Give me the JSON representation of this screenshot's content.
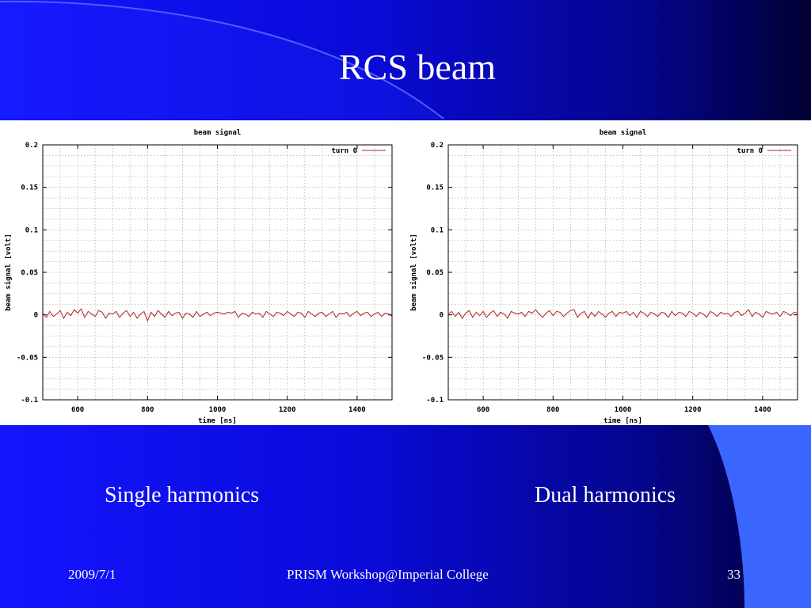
{
  "slide": {
    "title": "RCS beam",
    "captions": [
      "Single harmonics",
      "Dual harmonics"
    ],
    "footer": {
      "date": "2009/7/1",
      "event": "PRISM Workshop@Imperial College",
      "page": "33"
    }
  },
  "chart_data": [
    {
      "type": "line",
      "title": "beam signal",
      "xlabel": "time [ns]",
      "ylabel": "beam signal [volt]",
      "xlim": [
        500,
        1500
      ],
      "ylim": [
        -0.1,
        0.2
      ],
      "xticks": [
        600,
        800,
        1000,
        1200,
        1400
      ],
      "xtick_labels": [
        "600",
        "800",
        "1000",
        "1200",
        "1400"
      ],
      "yticks": [
        -0.1,
        -0.05,
        0,
        0.05,
        0.1,
        0.15,
        0.2
      ],
      "ytick_labels": [
        "-0.1",
        "-0.05",
        "0",
        "0.05",
        "0.1",
        "0.15",
        "0.2"
      ],
      "grid": true,
      "legend_position": "top-right",
      "line_color": "#b22222",
      "series": [
        {
          "name": "turn 0",
          "x": [
            500,
            510,
            520,
            530,
            540,
            550,
            560,
            570,
            580,
            590,
            600,
            610,
            620,
            630,
            640,
            650,
            660,
            670,
            680,
            690,
            700,
            710,
            720,
            730,
            740,
            750,
            760,
            770,
            780,
            790,
            800,
            810,
            820,
            830,
            840,
            850,
            860,
            870,
            880,
            890,
            900,
            910,
            920,
            930,
            940,
            950,
            960,
            970,
            980,
            990,
            1000,
            1010,
            1020,
            1030,
            1040,
            1050,
            1060,
            1070,
            1080,
            1090,
            1100,
            1110,
            1120,
            1130,
            1140,
            1150,
            1160,
            1170,
            1180,
            1190,
            1200,
            1210,
            1220,
            1230,
            1240,
            1250,
            1260,
            1270,
            1280,
            1290,
            1300,
            1310,
            1320,
            1330,
            1340,
            1350,
            1360,
            1370,
            1380,
            1390,
            1400,
            1410,
            1420,
            1430,
            1440,
            1450,
            1460,
            1470,
            1480,
            1490,
            1500
          ],
          "values": [
            0.002,
            -0.003,
            0.004,
            -0.002,
            0.001,
            0.005,
            -0.004,
            0.003,
            -0.001,
            0.006,
            0.002,
            0.007,
            -0.003,
            0.004,
            0.001,
            -0.002,
            0.005,
            0.003,
            -0.004,
            0.002,
            0.001,
            0.004,
            -0.003,
            0.002,
            0.005,
            -0.002,
            0.003,
            -0.004,
            0.001,
            0.004,
            -0.007,
            0.003,
            -0.002,
            0.005,
            0.001,
            -0.003,
            0.004,
            -0.001,
            0.002,
            0.003,
            -0.004,
            0.002,
            0.001,
            -0.003,
            0.004,
            -0.002,
            0.001,
            0.003,
            -0.001,
            0.002,
            0.003,
            0.002,
            0.001,
            0.003,
            0.002,
            0.004,
            -0.003,
            0.002,
            0.001,
            -0.002,
            0.003,
            0.001,
            0.002,
            -0.003,
            0.004,
            0.001,
            -0.002,
            0.003,
            0.002,
            -0.001,
            0.004,
            0.001,
            -0.002,
            0.003,
            0.002,
            -0.003,
            0.004,
            0.001,
            -0.002,
            0.002,
            0.003,
            -0.002,
            0.001,
            0.004,
            -0.003,
            0.002,
            0.001,
            0.003,
            -0.002,
            0.002,
            0.004,
            -0.001,
            0.002,
            0.003,
            -0.002,
            0.001,
            0.003,
            -0.002,
            0.002,
            0.001,
            -0.002
          ]
        }
      ]
    },
    {
      "type": "line",
      "title": "beam signal",
      "xlabel": "time [ns]",
      "ylabel": "beam signal [volt]",
      "xlim": [
        500,
        1500
      ],
      "ylim": [
        -0.1,
        0.2
      ],
      "xticks": [
        600,
        800,
        1000,
        1200,
        1400
      ],
      "xtick_labels": [
        "600",
        "800",
        "1000",
        "1200",
        "1400"
      ],
      "yticks": [
        -0.1,
        -0.05,
        0,
        0.05,
        0.1,
        0.15,
        0.2
      ],
      "ytick_labels": [
        "-0.1",
        "-0.05",
        "0",
        "0.05",
        "0.1",
        "0.15",
        "0.2"
      ],
      "grid": true,
      "legend_position": "top-right",
      "line_color": "#b22222",
      "series": [
        {
          "name": "turn 0",
          "x": [
            500,
            510,
            520,
            530,
            540,
            550,
            560,
            570,
            580,
            590,
            600,
            610,
            620,
            630,
            640,
            650,
            660,
            670,
            680,
            690,
            700,
            710,
            720,
            730,
            740,
            750,
            760,
            770,
            780,
            790,
            800,
            810,
            820,
            830,
            840,
            850,
            860,
            870,
            880,
            890,
            900,
            910,
            920,
            930,
            940,
            950,
            960,
            970,
            980,
            990,
            1000,
            1010,
            1020,
            1030,
            1040,
            1050,
            1060,
            1070,
            1080,
            1090,
            1100,
            1110,
            1120,
            1130,
            1140,
            1150,
            1160,
            1170,
            1180,
            1190,
            1200,
            1210,
            1220,
            1230,
            1240,
            1250,
            1260,
            1270,
            1280,
            1290,
            1300,
            1310,
            1320,
            1330,
            1340,
            1350,
            1360,
            1370,
            1380,
            1390,
            1400,
            1410,
            1420,
            1430,
            1440,
            1450,
            1460,
            1470,
            1480,
            1490,
            1500
          ],
          "values": [
            0.001,
            0.004,
            -0.002,
            0.003,
            -0.004,
            0.002,
            0.005,
            -0.003,
            0.003,
            -0.001,
            0.004,
            -0.003,
            0.002,
            0.005,
            -0.002,
            0.003,
            0.001,
            -0.004,
            0.004,
            0.002,
            0.001,
            0.003,
            -0.002,
            0.004,
            0.002,
            0.006,
            0.001,
            -0.003,
            0.002,
            0.005,
            -0.001,
            0.004,
            0.003,
            -0.002,
            0.002,
            0.005,
            0.006,
            -0.003,
            0.002,
            0.004,
            -0.004,
            0.003,
            -0.002,
            0.004,
            0.001,
            -0.003,
            0.002,
            0.004,
            -0.002,
            0.003,
            0.002,
            0.004,
            -0.001,
            0.003,
            -0.003,
            0.004,
            0.002,
            -0.002,
            0.003,
            0.001,
            -0.002,
            0.003,
            0.002,
            -0.003,
            0.004,
            -0.001,
            0.003,
            0.002,
            -0.002,
            0.004,
            0.002,
            -0.002,
            0.003,
            0.001,
            -0.003,
            0.004,
            0.002,
            -0.002,
            0.003,
            0.001,
            0.002,
            -0.002,
            0.003,
            0.004,
            -0.001,
            0.002,
            0.006,
            -0.002,
            0.003,
            0.001,
            -0.003,
            0.004,
            0.002,
            0.001,
            0.003,
            -0.002,
            0.004,
            0.002,
            -0.001,
            0.003,
            0.002
          ]
        }
      ]
    }
  ]
}
